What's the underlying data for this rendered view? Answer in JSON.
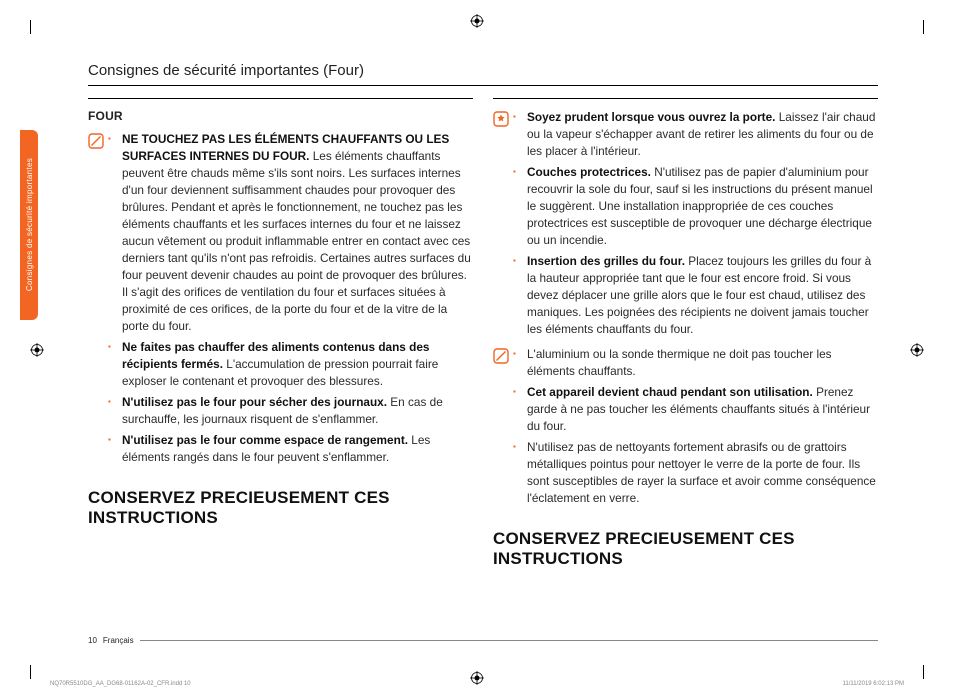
{
  "header_title": "Consignes de sécurité importantes (Four)",
  "side_tab_label": "Consignes de sécurité importantes",
  "section_label": "FOUR",
  "col1_block1": [
    {
      "bold": "NE TOUCHEZ PAS LES ÉLÉMENTS CHAUFFANTS OU LES SURFACES INTERNES DU FOUR.",
      "text": " Les éléments chauffants peuvent être chauds même s'ils sont noirs. Les surfaces internes d'un four deviennent suffisamment chaudes pour provoquer des brûlures. Pendant et après le fonctionnement, ne touchez pas les éléments chauffants et les surfaces internes du four et ne laissez aucun vêtement ou produit inflammable entrer en contact avec ces derniers tant qu'ils n'ont pas refroidis. Certaines autres surfaces du four peuvent devenir chaudes au point de provoquer des brûlures. Il s'agit des orifices de ventilation du four et surfaces situées à proximité de ces orifices, de la porte du four et de la vitre de la porte du four."
    },
    {
      "bold": "Ne faites pas chauffer des aliments contenus dans des récipients fermés.",
      "text": " L'accumulation de pression pourrait faire exploser le contenant et provoquer des blessures."
    },
    {
      "bold": "N'utilisez pas le four pour sécher des journaux.",
      "text": " En cas de surchauffe, les journaux risquent de s'enflammer."
    },
    {
      "bold": "N'utilisez pas le four comme espace de rangement.",
      "text": " Les éléments rangés dans le four peuvent s'enflammer."
    }
  ],
  "col2_block1": [
    {
      "bold": "Soyez prudent lorsque vous ouvrez la porte.",
      "text": " Laissez l'air chaud ou la vapeur s'échapper avant de retirer les aliments du four ou de les placer à l'intérieur."
    },
    {
      "bold": "Couches protectrices.",
      "text": " N'utilisez pas de papier d'aluminium pour recouvrir la sole du four, sauf si les instructions du présent manuel le suggèrent. Une installation inappropriée de ces couches protectrices est susceptible de provoquer une décharge électrique ou un incendie."
    },
    {
      "bold": "Insertion des grilles du four.",
      "text": " Placez toujours les grilles du four à la hauteur appropriée tant que le four est encore froid. Si vous devez déplacer une grille alors que le four est chaud, utilisez des maniques. Les poignées des récipients ne doivent jamais toucher les éléments chauffants du four."
    }
  ],
  "col2_block2": [
    {
      "bold": "",
      "text": "L'aluminium ou la sonde thermique ne doit pas toucher les éléments chauffants."
    },
    {
      "bold": "Cet appareil devient chaud pendant son utilisation.",
      "text": " Prenez garde à ne pas toucher les éléments chauffants situés à l'intérieur du four."
    },
    {
      "bold": "",
      "text": "N'utilisez pas de nettoyants fortement abrasifs ou de grattoirs métalliques pointus pour nettoyer le verre de la porte de four. Ils sont susceptibles de rayer la surface et avoir comme conséquence l'éclatement en verre."
    }
  ],
  "save_line": "CONSERVEZ PRECIEUSEMENT CES INSTRUCTIONS",
  "footer_page": "10",
  "footer_lang": "Français",
  "imprint_left": "NQ70R5510DG_AA_DG68-01162A-02_CFR.indd   10",
  "imprint_right": "11/11/2019   6:02:13 PM",
  "colors": {
    "accent": "#f26522"
  }
}
